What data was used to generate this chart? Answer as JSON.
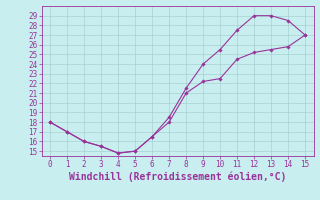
{
  "xlabel": "Windchill (Refroidissement éolien,°C)",
  "line1_x": [
    0,
    1,
    2,
    3,
    4,
    5,
    6,
    7,
    8,
    9,
    10,
    11,
    12,
    13,
    14,
    15
  ],
  "line1_y": [
    18,
    17,
    16,
    15.5,
    14.8,
    15,
    16.5,
    18.5,
    21.5,
    24,
    25.5,
    27.5,
    29,
    29,
    28.5,
    27
  ],
  "line2_x": [
    0,
    1,
    2,
    3,
    4,
    5,
    6,
    7,
    8,
    9,
    10,
    11,
    12,
    13,
    14,
    15
  ],
  "line2_y": [
    18,
    17,
    16,
    15.5,
    14.8,
    15,
    16.5,
    18,
    21,
    22.2,
    22.5,
    24.5,
    25.2,
    25.5,
    25.8,
    27
  ],
  "color": "#993399",
  "bg_color": "#c8eef0",
  "grid_color": "#a0cccc",
  "xlim": [
    -0.5,
    15.5
  ],
  "ylim": [
    14.5,
    30
  ],
  "yticks": [
    15,
    16,
    17,
    18,
    19,
    20,
    21,
    22,
    23,
    24,
    25,
    26,
    27,
    28,
    29
  ],
  "xticks": [
    0,
    1,
    2,
    3,
    4,
    5,
    6,
    7,
    8,
    9,
    10,
    11,
    12,
    13,
    14,
    15
  ],
  "tick_fontsize": 5.5,
  "label_fontsize": 7.0
}
